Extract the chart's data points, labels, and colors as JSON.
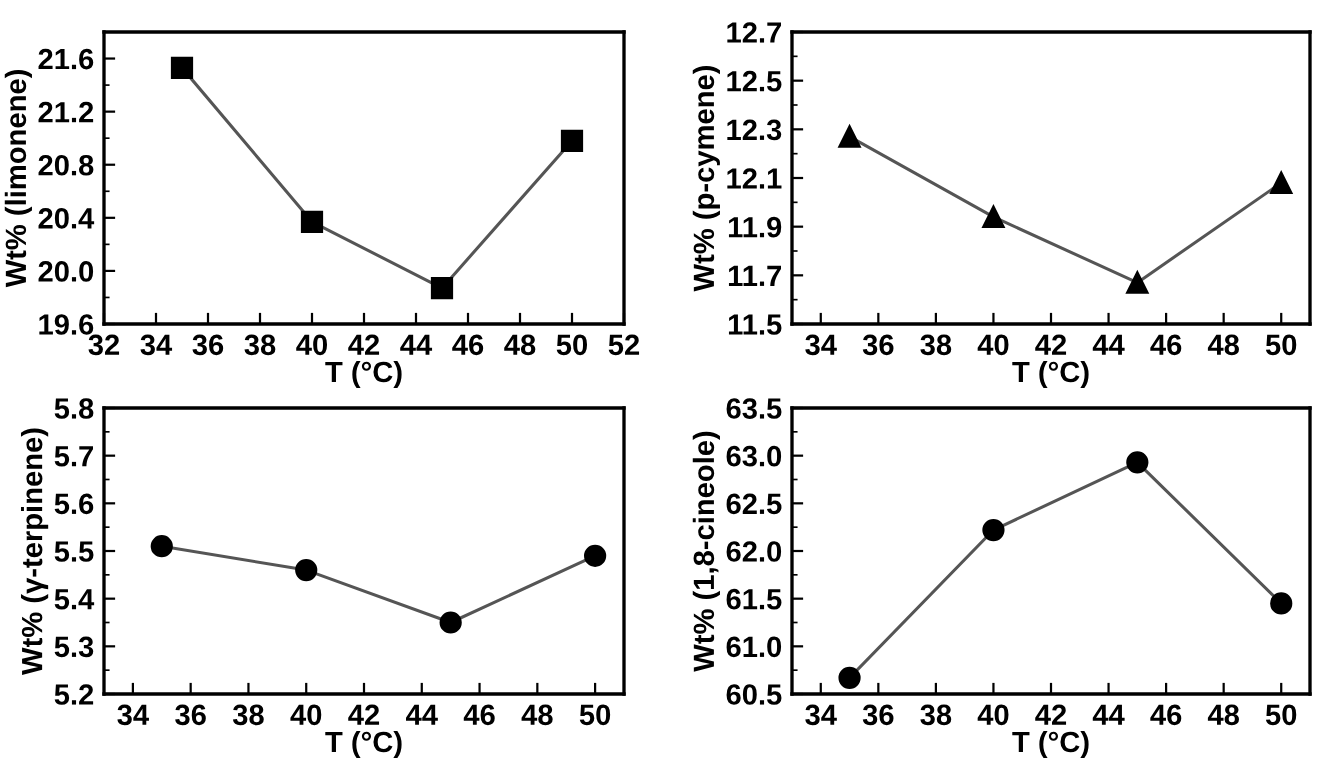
{
  "chart_data": [
    {
      "type": "line",
      "xlabel": "T (°C)",
      "ylabel": "Wt% (limonene)",
      "x": [
        35,
        40,
        45,
        50
      ],
      "series": [
        {
          "color": "#000000",
          "values": [
            21.53,
            20.37,
            19.87,
            20.98
          ]
        }
      ],
      "marker": "square",
      "xlim": [
        32,
        52
      ],
      "xticks": [
        32,
        34,
        36,
        38,
        40,
        42,
        44,
        46,
        48,
        50,
        52
      ],
      "ylim": [
        19.6,
        21.8
      ],
      "yticks": [
        19.6,
        {
          "value": 20.0,
          "label": "20.0"
        },
        20.4,
        20.8,
        21.2,
        21.6
      ]
    },
    {
      "type": "line",
      "xlabel": "T (°C)",
      "ylabel": "Wt% (p-cymene)",
      "x": [
        35,
        40,
        45,
        50
      ],
      "series": [
        {
          "color": "#000000",
          "values": [
            12.27,
            11.94,
            11.67,
            12.08
          ]
        }
      ],
      "marker": "triangle",
      "xlim": [
        33,
        51
      ],
      "xticks": [
        34,
        36,
        38,
        40,
        42,
        44,
        46,
        48,
        50
      ],
      "ylim": [
        11.5,
        12.7
      ],
      "yticks": [
        11.5,
        11.7,
        11.9,
        12.1,
        12.3,
        12.5,
        12.7
      ]
    },
    {
      "type": "line",
      "xlabel": "T (°C)",
      "ylabel": "Wt% (γ-terpinene)",
      "x": [
        35,
        40,
        45,
        50
      ],
      "series": [
        {
          "color": "#000000",
          "values": [
            5.51,
            5.46,
            5.35,
            5.49
          ]
        }
      ],
      "marker": "circle",
      "xlim": [
        33,
        51
      ],
      "xticks": [
        34,
        36,
        38,
        40,
        42,
        44,
        46,
        48,
        50
      ],
      "ylim": [
        5.2,
        5.8
      ],
      "yticks": [
        5.2,
        5.3,
        5.4,
        5.5,
        5.6,
        5.7,
        5.8
      ]
    },
    {
      "type": "line",
      "xlabel": "T (°C)",
      "ylabel": "Wt% (1,8-cineole)",
      "x": [
        35,
        40,
        45,
        50
      ],
      "series": [
        {
          "color": "#000000",
          "values": [
            60.67,
            62.22,
            62.93,
            61.45
          ]
        }
      ],
      "marker": "circle",
      "xlim": [
        33,
        51
      ],
      "xticks": [
        34,
        36,
        38,
        40,
        42,
        44,
        46,
        48,
        50
      ],
      "ylim": [
        60.5,
        63.5
      ],
      "yticks": [
        {
          "value": 60.5,
          "label": "60.5"
        },
        {
          "value": 61.0,
          "label": "61.0"
        },
        {
          "value": 61.5,
          "label": "61.5"
        },
        {
          "value": 62.0,
          "label": "62.0"
        },
        {
          "value": 62.5,
          "label": "62.5"
        },
        {
          "value": 63.0,
          "label": "63.0"
        },
        {
          "value": 63.5,
          "label": "63.5"
        }
      ]
    }
  ]
}
